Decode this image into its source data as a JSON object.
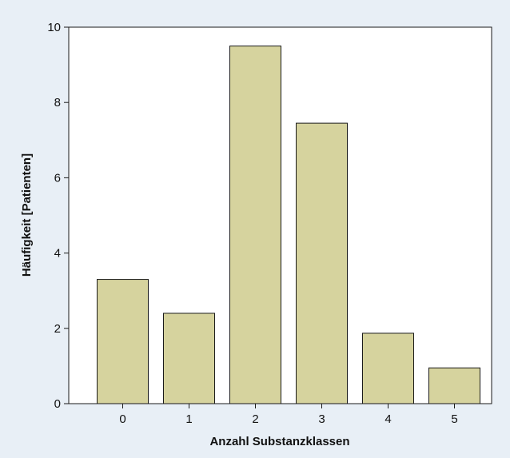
{
  "chart_data": {
    "type": "bar",
    "categories": [
      "0",
      "1",
      "2",
      "3",
      "4",
      "5"
    ],
    "values": [
      3.3,
      2.4,
      9.5,
      7.45,
      1.87,
      0.95
    ],
    "title": "",
    "xlabel": "Anzahl Substanzklassen",
    "ylabel": "Häufigkeit [Patienten]",
    "ylim": [
      0,
      10
    ],
    "yticks": [
      "0",
      "2",
      "4",
      "6",
      "8",
      "10"
    ],
    "grid": false,
    "colors": {
      "bar_fill": "#d6d39e",
      "bar_stroke": "#1a1a1a",
      "plot_bg": "#ffffff",
      "page_bg": "#e8eff6"
    }
  }
}
